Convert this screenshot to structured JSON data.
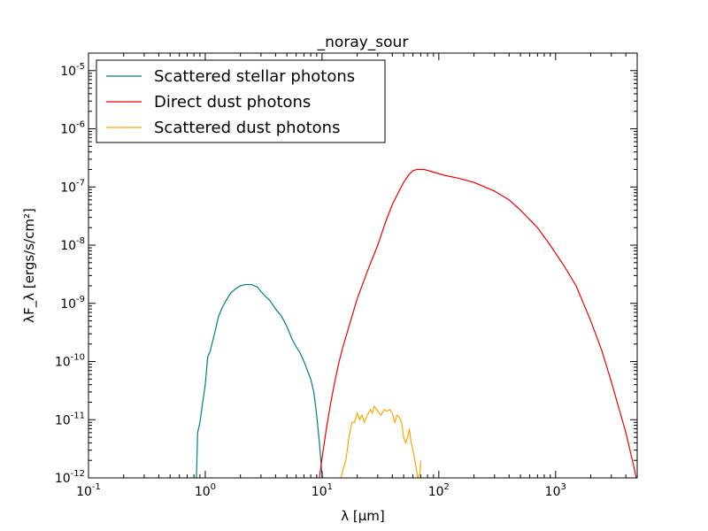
{
  "chart_data": {
    "type": "line",
    "title": "_noray_sour",
    "xlabel": "λ [μm]",
    "ylabel": "λF_λ  [ergs/s/cm²]",
    "x_scale": "log",
    "y_scale": "log",
    "xlim": [
      0.1,
      5000
    ],
    "ylim": [
      1e-12,
      2e-05
    ],
    "legend_position": "top-left",
    "grid": false,
    "x_ticks": [
      {
        "value": 0.1,
        "base": "10",
        "exp": "-1"
      },
      {
        "value": 1,
        "base": "10",
        "exp": "0"
      },
      {
        "value": 10,
        "base": "10",
        "exp": "1"
      },
      {
        "value": 100,
        "base": "10",
        "exp": "2"
      },
      {
        "value": 1000,
        "base": "10",
        "exp": "3"
      }
    ],
    "y_ticks": [
      {
        "value": 1e-12,
        "base": "10",
        "exp": "-12"
      },
      {
        "value": 1e-11,
        "base": "10",
        "exp": "-11"
      },
      {
        "value": 1e-10,
        "base": "10",
        "exp": "-10"
      },
      {
        "value": 1e-09,
        "base": "10",
        "exp": "-9"
      },
      {
        "value": 1e-08,
        "base": "10",
        "exp": "-8"
      },
      {
        "value": 1e-07,
        "base": "10",
        "exp": "-7"
      },
      {
        "value": 1e-06,
        "base": "10",
        "exp": "-6"
      },
      {
        "value": 1e-05,
        "base": "10",
        "exp": "-5"
      }
    ],
    "series": [
      {
        "name": "Scattered stellar photons",
        "color": "#008080",
        "points": [
          [
            0.84,
            1e-12
          ],
          [
            0.86,
            6e-12
          ],
          [
            0.9,
            9e-12
          ],
          [
            0.95,
            2e-11
          ],
          [
            1.0,
            4e-11
          ],
          [
            1.05,
            1.2e-10
          ],
          [
            1.1,
            1.5e-10
          ],
          [
            1.2,
            3e-10
          ],
          [
            1.3,
            6e-10
          ],
          [
            1.4,
            8.5e-10
          ],
          [
            1.5,
            1.1e-09
          ],
          [
            1.65,
            1.5e-09
          ],
          [
            1.8,
            1.75e-09
          ],
          [
            2.0,
            2e-09
          ],
          [
            2.2,
            2.1e-09
          ],
          [
            2.5,
            2.1e-09
          ],
          [
            2.8,
            1.9e-09
          ],
          [
            3.0,
            1.6e-09
          ],
          [
            3.3,
            1.3e-09
          ],
          [
            3.6,
            1.1e-09
          ],
          [
            4.0,
            8e-10
          ],
          [
            4.5,
            6e-10
          ],
          [
            5.0,
            4e-10
          ],
          [
            5.5,
            2.5e-10
          ],
          [
            6.0,
            1.8e-10
          ],
          [
            6.5,
            1.4e-10
          ],
          [
            7.0,
            1e-10
          ],
          [
            7.5,
            7e-11
          ],
          [
            8.0,
            5e-11
          ],
          [
            8.5,
            3e-11
          ],
          [
            9.0,
            1.2e-11
          ],
          [
            9.5,
            4e-12
          ],
          [
            9.9,
            1.4e-12
          ],
          [
            10.1,
            1e-12
          ]
        ]
      },
      {
        "name": "Direct dust photons",
        "color": "#ee0000",
        "points": [
          [
            9.5,
            1e-12
          ],
          [
            10,
            2.2e-12
          ],
          [
            11,
            8e-12
          ],
          [
            12,
            2.2e-11
          ],
          [
            13,
            5e-11
          ],
          [
            14,
            1e-10
          ],
          [
            15,
            1.7e-10
          ],
          [
            17,
            4e-10
          ],
          [
            20,
            1.2e-09
          ],
          [
            25,
            4e-09
          ],
          [
            30,
            1e-08
          ],
          [
            35,
            2.5e-08
          ],
          [
            40,
            5e-08
          ],
          [
            45,
            8e-08
          ],
          [
            50,
            1.2e-07
          ],
          [
            55,
            1.6e-07
          ],
          [
            60,
            1.9e-07
          ],
          [
            65,
            2e-07
          ],
          [
            75,
            2e-07
          ],
          [
            90,
            1.8e-07
          ],
          [
            110,
            1.6e-07
          ],
          [
            150,
            1.4e-07
          ],
          [
            200,
            1.2e-07
          ],
          [
            300,
            8.5e-08
          ],
          [
            400,
            6e-08
          ],
          [
            500,
            4e-08
          ],
          [
            700,
            2e-08
          ],
          [
            900,
            1e-08
          ],
          [
            1200,
            4.2e-09
          ],
          [
            1500,
            2e-09
          ],
          [
            2000,
            5e-10
          ],
          [
            2500,
            1.5e-10
          ],
          [
            3000,
            4.5e-11
          ],
          [
            4000,
            6e-12
          ],
          [
            4700,
            1.5e-12
          ],
          [
            4900,
            1e-12
          ]
        ]
      },
      {
        "name": "Scattered dust photons",
        "color": "#ffa500",
        "points": [
          [
            14.5,
            1e-12
          ],
          [
            15.3,
            1.5e-12
          ],
          [
            16,
            2e-12
          ],
          [
            17,
            5e-12
          ],
          [
            18,
            9e-12
          ],
          [
            19,
            9e-12
          ],
          [
            20,
            1.3e-11
          ],
          [
            21,
            1e-11
          ],
          [
            22,
            1.2e-11
          ],
          [
            23,
            9e-12
          ],
          [
            24,
            1.1e-11
          ],
          [
            25,
            1.3e-11
          ],
          [
            26,
            1.5e-11
          ],
          [
            27,
            1.3e-11
          ],
          [
            28,
            1.7e-11
          ],
          [
            30,
            1.4e-11
          ],
          [
            32,
            1.2e-11
          ],
          [
            34,
            1.5e-11
          ],
          [
            36,
            1.4e-11
          ],
          [
            38,
            1.5e-11
          ],
          [
            40,
            1.3e-11
          ],
          [
            42,
            9e-12
          ],
          [
            44,
            1.2e-11
          ],
          [
            46,
            1.1e-11
          ],
          [
            48,
            9e-12
          ],
          [
            50,
            5e-12
          ],
          [
            52,
            4e-12
          ],
          [
            54,
            5e-12
          ],
          [
            56,
            7e-12
          ],
          [
            58,
            4e-12
          ],
          [
            60,
            3e-12
          ],
          [
            63,
            1.8e-12
          ],
          [
            66,
            1e-12
          ],
          [
            69,
            1.2e-12
          ],
          [
            70,
            2e-12
          ]
        ]
      }
    ]
  }
}
